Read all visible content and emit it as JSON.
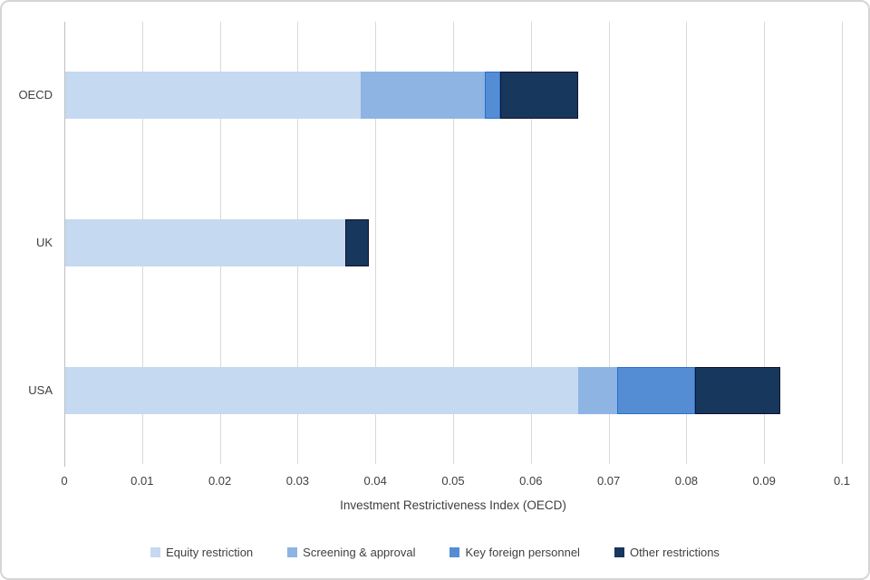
{
  "chart_data": {
    "type": "bar",
    "orientation": "horizontal",
    "stacked": true,
    "title": "",
    "xlabel": "Investment Restrictiveness Index (OECD)",
    "ylabel": "",
    "xlim": [
      0,
      0.1
    ],
    "x_ticks": [
      "0",
      "0.01",
      "0.02",
      "0.03",
      "0.04",
      "0.05",
      "0.06",
      "0.07",
      "0.08",
      "0.09",
      "0.1"
    ],
    "grid": "vertical-only",
    "legend_position": "bottom",
    "categories": [
      "OECD",
      "UK",
      "USA"
    ],
    "series": [
      {
        "name": "Equity restriction",
        "color": "#c5d9f1",
        "border": null,
        "values": [
          0.038,
          0.036,
          0.066
        ]
      },
      {
        "name": "Screening & approval",
        "color": "#8db4e2",
        "border": null,
        "values": [
          0.016,
          0.0,
          0.005
        ]
      },
      {
        "name": "Key foreign personnel",
        "color": "#548dd4",
        "border": "#2a6fce",
        "values": [
          0.002,
          0.0,
          0.01
        ]
      },
      {
        "name": "Other restrictions",
        "color": "#17375d",
        "border": "#14102f",
        "values": [
          0.01,
          0.003,
          0.011
        ]
      }
    ],
    "totals": [
      0.066,
      0.039,
      0.092
    ]
  },
  "colors": {
    "gridline": "#d9d9d9",
    "axis_line": "#bfbfbf",
    "text": "#3f3f3f",
    "background": "#ffffff"
  }
}
